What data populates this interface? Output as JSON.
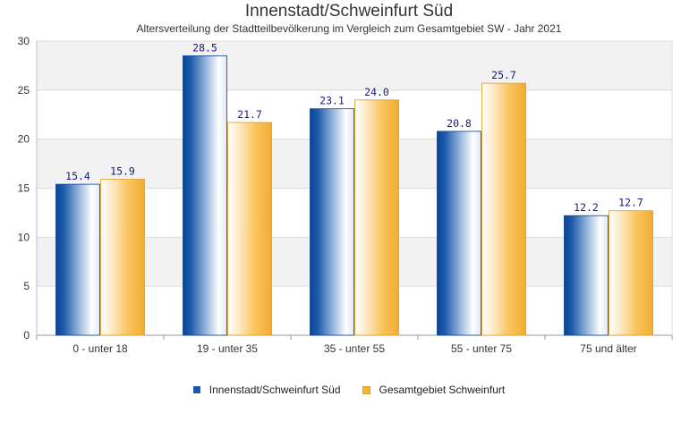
{
  "chart_data": {
    "type": "bar",
    "title": "Innenstadt/Schweinfurt Süd",
    "subtitle": "Altersverteilung der Stadtteilbevölkerung im Vergleich zum Gesamtgebiet SW - Jahr 2021",
    "categories": [
      "0 - unter 18",
      "19 - unter 35",
      "35 - unter 55",
      "55 - unter 75",
      "75 und älter"
    ],
    "series": [
      {
        "name": "Innenstadt/Schweinfurt Süd",
        "values": [
          15.4,
          28.5,
          23.1,
          20.8,
          12.2
        ],
        "color": "#1f57a8"
      },
      {
        "name": "Gesamtgebiet Schweinfurt",
        "values": [
          15.9,
          21.7,
          24.0,
          25.7,
          12.7
        ],
        "color": "#f5b43c"
      }
    ],
    "data_labels": [
      [
        "15.4",
        "28.5",
        "23.1",
        "20.8",
        "12.2"
      ],
      [
        "15.9",
        "21.7",
        "24.0",
        "25.7",
        "12.7"
      ]
    ],
    "y_ticks": [
      "0",
      "5",
      "10",
      "15",
      "20",
      "25",
      "30"
    ],
    "ylim": [
      0,
      30
    ],
    "xlabel": "",
    "ylabel": "",
    "grid": true,
    "legend_position": "bottom"
  }
}
